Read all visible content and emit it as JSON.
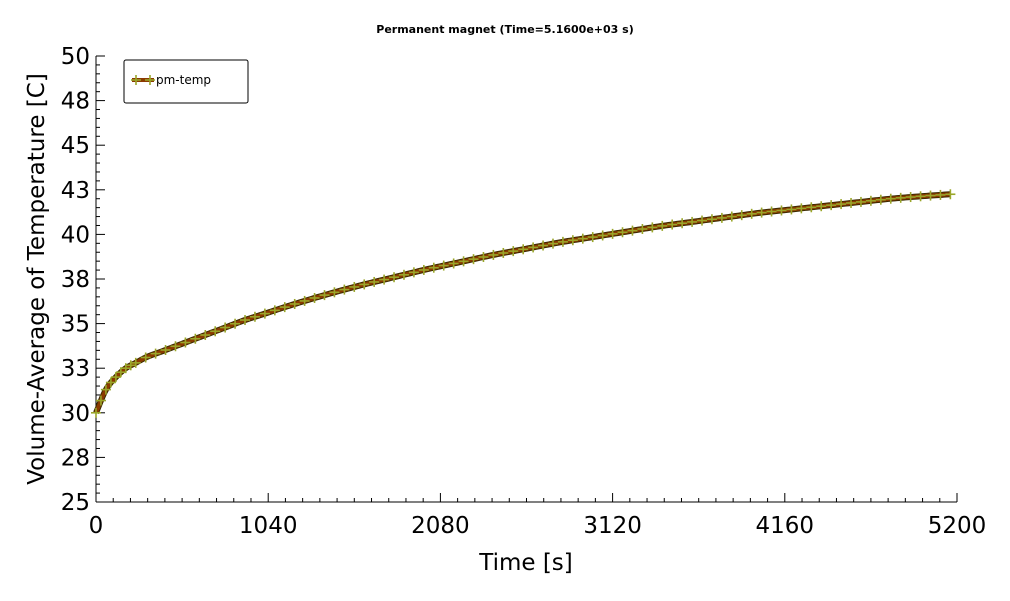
{
  "chart_data": {
    "type": "line",
    "title": "Permanent magnet (Time=5.1600e+03 s)",
    "xlabel": "Time [s]",
    "ylabel": "Volume-Average of Temperature [C]",
    "xlim": [
      0,
      5200
    ],
    "ylim": [
      25,
      50
    ],
    "x_ticks": [
      "0",
      "1040",
      "2080",
      "3120",
      "4160",
      "5200"
    ],
    "y_ticks": [
      "25",
      "28",
      "30",
      "33",
      "35",
      "38",
      "40",
      "43",
      "45",
      "48",
      "50"
    ],
    "legend": {
      "position": "top-left",
      "entries": [
        "pm-temp"
      ]
    },
    "series": [
      {
        "name": "pm-temp",
        "line_color": "#8b3a00",
        "marker_color": "#9aa62a",
        "x": [
          0,
          60,
          120,
          180,
          240,
          300,
          400,
          500,
          600,
          700,
          800,
          900,
          1000,
          1200,
          1400,
          1600,
          1800,
          2000,
          2200,
          2400,
          2600,
          2800,
          3000,
          3200,
          3400,
          3600,
          3800,
          4000,
          4200,
          4400,
          4600,
          4800,
          5000,
          5160
        ],
        "y": [
          30.0,
          31.3,
          32.0,
          32.5,
          32.8,
          33.1,
          33.45,
          33.8,
          34.15,
          34.5,
          34.85,
          35.2,
          35.5,
          36.1,
          36.65,
          37.15,
          37.6,
          38.05,
          38.45,
          38.85,
          39.2,
          39.55,
          39.85,
          40.15,
          40.45,
          40.7,
          40.95,
          41.2,
          41.4,
          41.6,
          41.8,
          42.0,
          42.15,
          42.25
        ]
      }
    ]
  }
}
